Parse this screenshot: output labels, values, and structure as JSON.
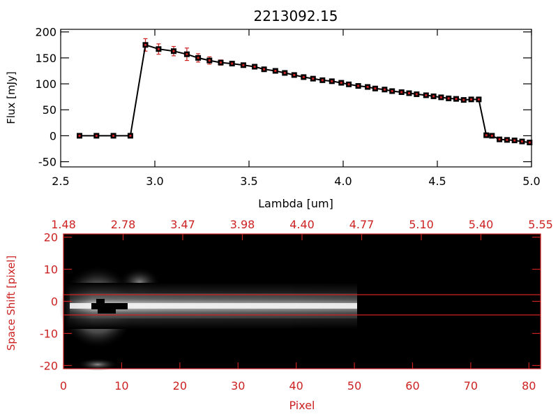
{
  "chart_data": [
    {
      "type": "line",
      "title": "2213092.15",
      "xlabel": "Lambda [um]",
      "ylabel": "Flux [mJy]",
      "xlim": [
        2.5,
        5.0
      ],
      "ylim": [
        -60,
        205
      ],
      "xticks": [
        "2.5",
        "3.0",
        "3.5",
        "4.0",
        "4.5",
        "5.0"
      ],
      "yticks": [
        "-50",
        "0",
        "50",
        "100",
        "150",
        "200"
      ],
      "series": [
        {
          "x": [
            2.6,
            2.69,
            2.78,
            2.87,
            2.95,
            3.02,
            3.1,
            3.17,
            3.23,
            3.29,
            3.35,
            3.41,
            3.47,
            3.53,
            3.58,
            3.64,
            3.69,
            3.74,
            3.79,
            3.84,
            3.89,
            3.94,
            3.99,
            4.03,
            4.08,
            4.13,
            4.17,
            4.22,
            4.26,
            4.31,
            4.35,
            4.39,
            4.44,
            4.48,
            4.52,
            4.56,
            4.6,
            4.64,
            4.68,
            4.72,
            4.76,
            4.79,
            4.83,
            4.87,
            4.91,
            4.95,
            4.99
          ],
          "y": [
            0,
            0,
            0,
            0,
            175,
            167,
            163,
            157,
            150,
            145,
            141,
            139,
            136,
            133,
            128,
            125,
            121,
            117,
            113,
            110,
            107,
            105,
            102,
            99,
            96,
            94,
            91,
            89,
            86,
            84,
            82,
            80,
            78,
            76,
            74,
            72,
            71,
            69,
            70,
            70,
            1,
            0,
            -7,
            -8,
            -9,
            -11,
            -13
          ],
          "yerr": [
            0,
            0,
            0,
            0,
            12,
            10,
            9,
            12,
            8,
            7,
            5,
            4,
            3,
            3,
            3,
            3,
            3,
            3,
            2,
            2,
            2,
            2,
            2,
            2,
            2,
            2,
            2,
            2,
            2,
            2,
            2,
            2,
            2,
            2,
            2,
            2,
            2,
            2,
            2,
            2,
            2,
            2,
            2,
            2,
            2,
            2,
            2
          ]
        }
      ],
      "colors": {
        "line": "#000000",
        "marker": "#000000",
        "error": "#cc2222",
        "frame": "#000000"
      }
    },
    {
      "type": "heatmap",
      "xlabel": "Pixel",
      "ylabel": "Space Shift [pixel]",
      "xlim": [
        0,
        82
      ],
      "ylim": [
        -21,
        21
      ],
      "xticks": [
        "0",
        "10",
        "20",
        "30",
        "40",
        "50",
        "60",
        "70",
        "80"
      ],
      "yticks": [
        "-20",
        "-10",
        "0",
        "10",
        "20"
      ],
      "top_axis_ticks": [
        "1.48",
        "2.78",
        "3.47",
        "3.98",
        "4.40",
        "4.77",
        "5.10",
        "5.40",
        "5.55"
      ],
      "extraction_aperture": [
        -3,
        3
      ],
      "spectrum_extent": [
        0,
        50
      ],
      "trace_peak_pixel": 8,
      "colors": {
        "axis": "#cc2222",
        "background": "#000000",
        "aperture": "#cc2222"
      }
    }
  ]
}
